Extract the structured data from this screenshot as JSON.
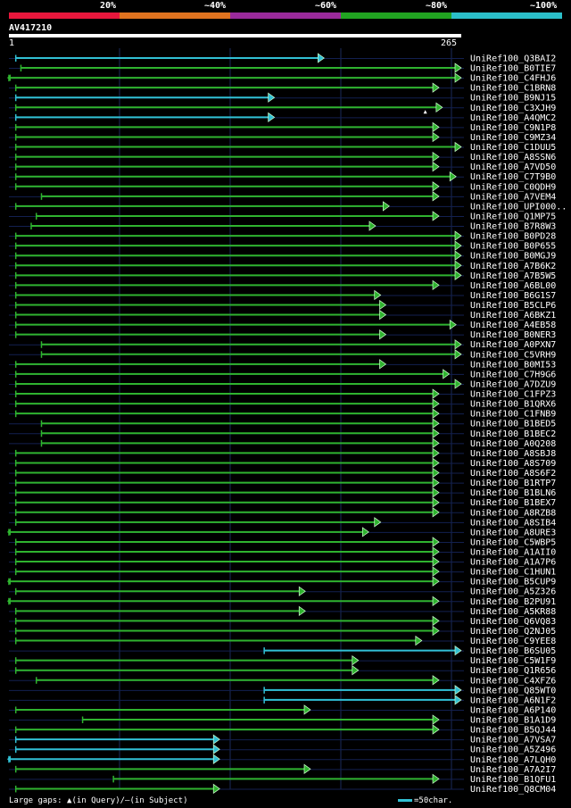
{
  "legend": {
    "labels": [
      "20%",
      "~40%",
      "~60%",
      "~80%",
      "~100%"
    ],
    "colors": [
      "#e8173c",
      "#e0731f",
      "#9a2a9b",
      "#21a321",
      "#2bbfc9"
    ]
  },
  "query": {
    "name": "AV417210",
    "start_label": "1",
    "end_label": "265"
  },
  "footer": {
    "text": "Large gaps: ▲(in Query)/‒(in Subject)",
    "scale_text": "=50char."
  },
  "chart_data": {
    "type": "alignment",
    "x_range": [
      1,
      265
    ],
    "hits": [
      {
        "name": "UniRef100_Q3BAI2",
        "start": 5,
        "end": 185,
        "color": "cyan",
        "left_arrow": false
      },
      {
        "name": "UniRef100_B0TIE7",
        "start": 8,
        "end": 265,
        "color": "green",
        "left_arrow": false
      },
      {
        "name": "UniRef100_C4FHJ6",
        "start": 1,
        "end": 265,
        "color": "green",
        "left_arrow": true
      },
      {
        "name": "UniRef100_C1BRN8",
        "start": 5,
        "end": 252,
        "color": "green",
        "left_arrow": false
      },
      {
        "name": "UniRef100_B9NJ15",
        "start": 5,
        "end": 156,
        "color": "cyan",
        "left_arrow": false
      },
      {
        "name": "UniRef100_C3XJH9",
        "start": 5,
        "end": 254,
        "color": "green",
        "left_arrow": false,
        "gap_at": 244
      },
      {
        "name": "UniRef100_A4QMC2",
        "start": 5,
        "end": 156,
        "color": "cyan",
        "left_arrow": false
      },
      {
        "name": "UniRef100_C9N1P8",
        "start": 5,
        "end": 252,
        "color": "green",
        "left_arrow": false
      },
      {
        "name": "UniRef100_C9MZ34",
        "start": 5,
        "end": 252,
        "color": "green",
        "left_arrow": false
      },
      {
        "name": "UniRef100_C1DUU5",
        "start": 5,
        "end": 265,
        "color": "green",
        "left_arrow": false
      },
      {
        "name": "UniRef100_A8SSN6",
        "start": 5,
        "end": 252,
        "color": "green",
        "left_arrow": false
      },
      {
        "name": "UniRef100_A7VD50",
        "start": 5,
        "end": 252,
        "color": "green",
        "left_arrow": false
      },
      {
        "name": "UniRef100_C7T9B0",
        "start": 5,
        "end": 262,
        "color": "green",
        "left_arrow": false
      },
      {
        "name": "UniRef100_C0QDH9",
        "start": 5,
        "end": 252,
        "color": "green",
        "left_arrow": false
      },
      {
        "name": "UniRef100_A7VEM4",
        "start": 20,
        "end": 252,
        "color": "green",
        "left_arrow": false
      },
      {
        "name": "UniRef100_UPI000..",
        "start": 5,
        "end": 223,
        "color": "green",
        "left_arrow": false
      },
      {
        "name": "UniRef100_Q1MP75",
        "start": 17,
        "end": 252,
        "color": "green",
        "left_arrow": false
      },
      {
        "name": "UniRef100_B7R8W3",
        "start": 14,
        "end": 215,
        "color": "green",
        "left_arrow": false
      },
      {
        "name": "UniRef100_B0PD28",
        "start": 5,
        "end": 265,
        "color": "green",
        "left_arrow": false
      },
      {
        "name": "UniRef100_B0P655",
        "start": 5,
        "end": 265,
        "color": "green",
        "left_arrow": false
      },
      {
        "name": "UniRef100_B0MGJ9",
        "start": 5,
        "end": 265,
        "color": "green",
        "left_arrow": false
      },
      {
        "name": "UniRef100_A7B6K2",
        "start": 5,
        "end": 265,
        "color": "green",
        "left_arrow": false
      },
      {
        "name": "UniRef100_A7B5W5",
        "start": 5,
        "end": 265,
        "color": "green",
        "left_arrow": false
      },
      {
        "name": "UniRef100_A6BL00",
        "start": 5,
        "end": 252,
        "color": "green",
        "left_arrow": false
      },
      {
        "name": "UniRef100_B6G1S7",
        "start": 5,
        "end": 218,
        "color": "green",
        "left_arrow": false
      },
      {
        "name": "UniRef100_B5CLP6",
        "start": 5,
        "end": 221,
        "color": "green",
        "left_arrow": false
      },
      {
        "name": "UniRef100_A6BKZ1",
        "start": 5,
        "end": 221,
        "color": "green",
        "left_arrow": false
      },
      {
        "name": "UniRef100_A4EB58",
        "start": 5,
        "end": 262,
        "color": "green",
        "left_arrow": false
      },
      {
        "name": "UniRef100_B0NER3",
        "start": 5,
        "end": 221,
        "color": "green",
        "left_arrow": false
      },
      {
        "name": "UniRef100_A0PXN7",
        "start": 20,
        "end": 265,
        "color": "green",
        "left_arrow": false
      },
      {
        "name": "UniRef100_C5VRH9",
        "start": 20,
        "end": 265,
        "color": "green",
        "left_arrow": false
      },
      {
        "name": "UniRef100_B0MI53",
        "start": 5,
        "end": 221,
        "color": "green",
        "left_arrow": false
      },
      {
        "name": "UniRef100_C7H9G6",
        "start": 5,
        "end": 258,
        "color": "green",
        "left_arrow": false
      },
      {
        "name": "UniRef100_A7DZU9",
        "start": 5,
        "end": 265,
        "color": "green",
        "left_arrow": false
      },
      {
        "name": "UniRef100_C1FPZ3",
        "start": 5,
        "end": 252,
        "color": "green",
        "left_arrow": false
      },
      {
        "name": "UniRef100_B1QRX6",
        "start": 5,
        "end": 252,
        "color": "green",
        "left_arrow": false
      },
      {
        "name": "UniRef100_C1FNB9",
        "start": 5,
        "end": 252,
        "color": "green",
        "left_arrow": false
      },
      {
        "name": "UniRef100_B1BED5",
        "start": 20,
        "end": 252,
        "color": "green",
        "left_arrow": false
      },
      {
        "name": "UniRef100_B1BEC2",
        "start": 20,
        "end": 252,
        "color": "green",
        "left_arrow": false
      },
      {
        "name": "UniRef100_A0Q208",
        "start": 20,
        "end": 252,
        "color": "green",
        "left_arrow": false
      },
      {
        "name": "UniRef100_A8SBJ8",
        "start": 5,
        "end": 252,
        "color": "green",
        "left_arrow": false
      },
      {
        "name": "UniRef100_A8S709",
        "start": 5,
        "end": 252,
        "color": "green",
        "left_arrow": false
      },
      {
        "name": "UniRef100_A8S6F2",
        "start": 5,
        "end": 252,
        "color": "green",
        "left_arrow": false
      },
      {
        "name": "UniRef100_B1RTP7",
        "start": 5,
        "end": 252,
        "color": "green",
        "left_arrow": false
      },
      {
        "name": "UniRef100_B1BLN6",
        "start": 5,
        "end": 252,
        "color": "green",
        "left_arrow": false
      },
      {
        "name": "UniRef100_B1BEX7",
        "start": 5,
        "end": 252,
        "color": "green",
        "left_arrow": false
      },
      {
        "name": "UniRef100_A8RZB8",
        "start": 5,
        "end": 252,
        "color": "green",
        "left_arrow": false
      },
      {
        "name": "UniRef100_A8SIB4",
        "start": 5,
        "end": 218,
        "color": "green",
        "left_arrow": false
      },
      {
        "name": "UniRef100_A8URE3",
        "start": 1,
        "end": 211,
        "color": "green",
        "left_arrow": true
      },
      {
        "name": "UniRef100_C5WBP5",
        "start": 5,
        "end": 252,
        "color": "green",
        "left_arrow": false
      },
      {
        "name": "UniRef100_A1AII0",
        "start": 5,
        "end": 252,
        "color": "green",
        "left_arrow": false
      },
      {
        "name": "UniRef100_A1A7P6",
        "start": 5,
        "end": 252,
        "color": "green",
        "left_arrow": false
      },
      {
        "name": "UniRef100_C1HUN1",
        "start": 5,
        "end": 252,
        "color": "green",
        "left_arrow": false
      },
      {
        "name": "UniRef100_B5CUP9",
        "start": 1,
        "end": 252,
        "color": "green",
        "left_arrow": true
      },
      {
        "name": "UniRef100_A5Z326",
        "start": 5,
        "end": 174,
        "color": "green",
        "left_arrow": false
      },
      {
        "name": "UniRef100_B2PU91",
        "start": 1,
        "end": 252,
        "color": "green",
        "left_arrow": true
      },
      {
        "name": "UniRef100_A5KR88",
        "start": 5,
        "end": 174,
        "color": "green",
        "left_arrow": false
      },
      {
        "name": "UniRef100_Q6VQ83",
        "start": 5,
        "end": 252,
        "color": "green",
        "left_arrow": false
      },
      {
        "name": "UniRef100_Q2NJ05",
        "start": 5,
        "end": 252,
        "color": "green",
        "left_arrow": false
      },
      {
        "name": "UniRef100_C9YEE8",
        "start": 5,
        "end": 242,
        "color": "green",
        "left_arrow": false
      },
      {
        "name": "UniRef100_B6SU05",
        "start": 150,
        "end": 265,
        "color": "cyan",
        "left_arrow": false
      },
      {
        "name": "UniRef100_C5W1F9",
        "start": 5,
        "end": 205,
        "color": "green",
        "left_arrow": false
      },
      {
        "name": "UniRef100_Q1R656",
        "start": 5,
        "end": 205,
        "color": "green",
        "left_arrow": false
      },
      {
        "name": "UniRef100_C4XFZ6",
        "start": 17,
        "end": 252,
        "color": "green",
        "left_arrow": false
      },
      {
        "name": "UniRef100_Q85WT0",
        "start": 150,
        "end": 265,
        "color": "cyan",
        "left_arrow": false
      },
      {
        "name": "UniRef100_A6N1F2",
        "start": 150,
        "end": 265,
        "color": "cyan",
        "left_arrow": false
      },
      {
        "name": "UniRef100_A6P140",
        "start": 5,
        "end": 177,
        "color": "green",
        "left_arrow": false
      },
      {
        "name": "UniRef100_B1A1D9",
        "start": 44,
        "end": 252,
        "color": "green",
        "left_arrow": false
      },
      {
        "name": "UniRef100_B5QJ44",
        "start": 5,
        "end": 252,
        "color": "green",
        "left_arrow": false
      },
      {
        "name": "UniRef100_A7VSA7",
        "start": 5,
        "end": 124,
        "color": "cyan",
        "left_arrow": false
      },
      {
        "name": "UniRef100_A5Z496",
        "start": 5,
        "end": 124,
        "color": "cyan",
        "left_arrow": false
      },
      {
        "name": "UniRef100_A7LQH0",
        "start": 1,
        "end": 124,
        "color": "cyan",
        "left_arrow": true
      },
      {
        "name": "UniRef100_A7A2I7",
        "start": 5,
        "end": 177,
        "color": "green",
        "left_arrow": false
      },
      {
        "name": "UniRef100_B1QFU1",
        "start": 62,
        "end": 252,
        "color": "green",
        "left_arrow": false
      },
      {
        "name": "UniRef100_Q8CM04",
        "start": 5,
        "end": 124,
        "color": "green",
        "left_arrow": false
      }
    ]
  }
}
